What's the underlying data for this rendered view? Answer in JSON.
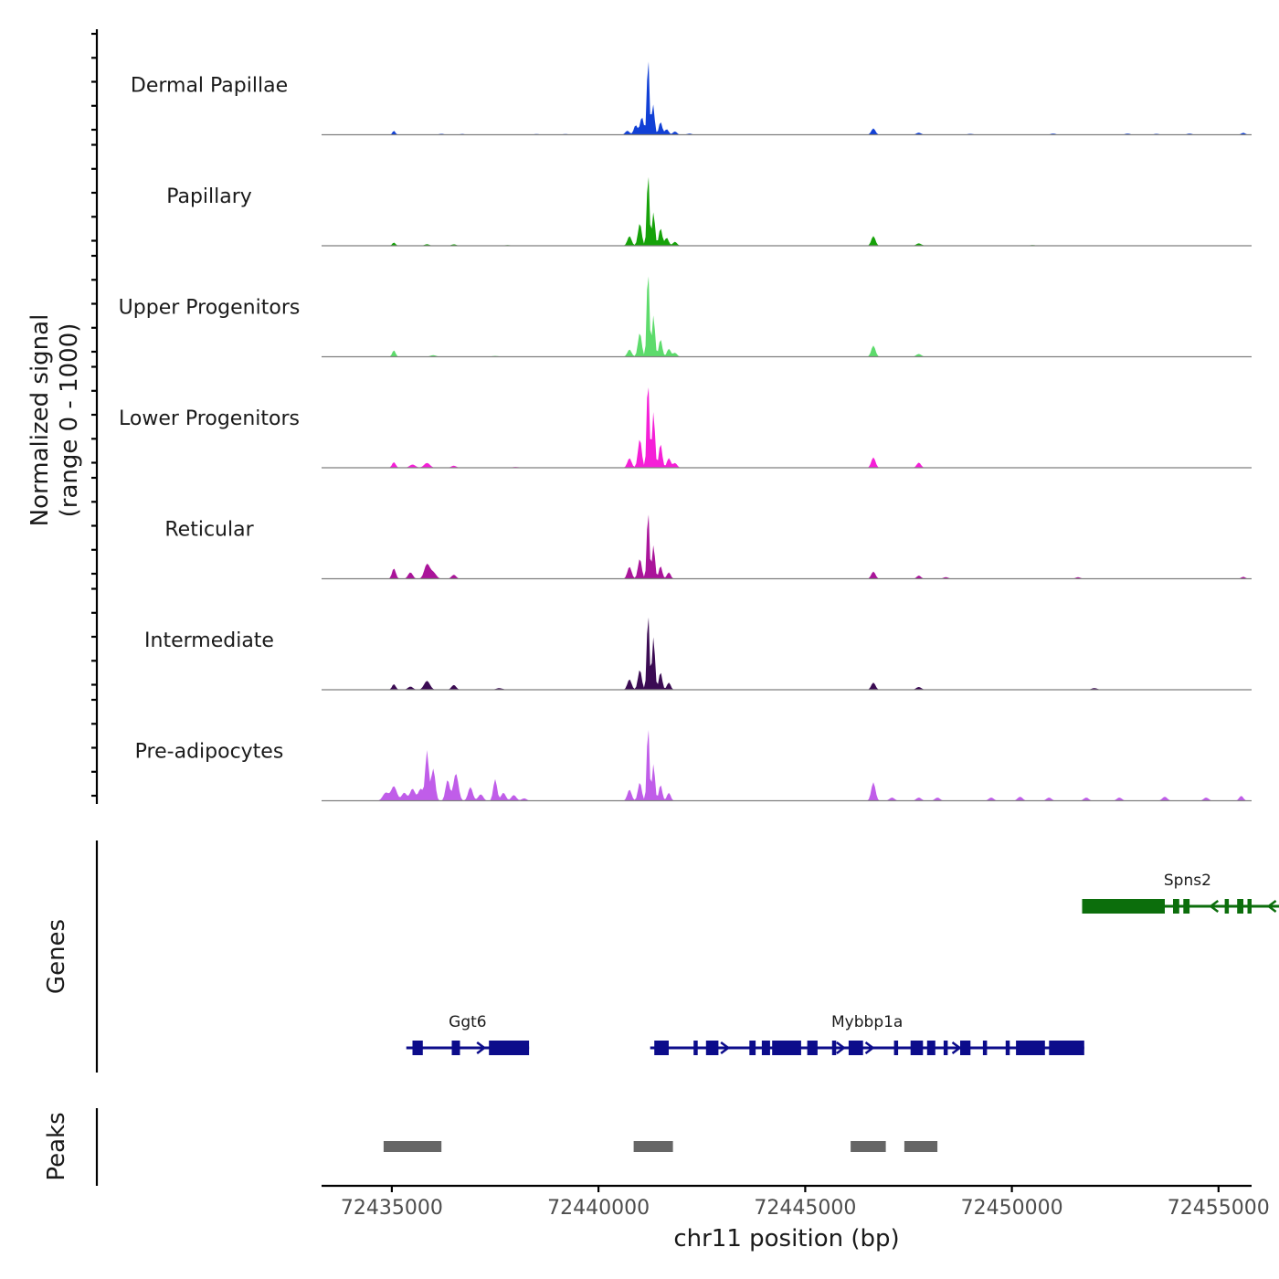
{
  "chart_data": {
    "type": "area",
    "title": "",
    "xlabel": "chr11 position (bp)",
    "ylabel": "Normalized signal",
    "ylabel_sub": "(range 0 - 1000)",
    "xlim": [
      72433300,
      72455800
    ],
    "ylim": [
      0,
      1000
    ],
    "x_ticks": [
      72435000,
      72440000,
      72445000,
      72450000,
      72455000
    ],
    "x_tick_labels": [
      "72435000",
      "72440000",
      "72445000",
      "72450000",
      "72455000"
    ],
    "tracks": [
      {
        "name": "Dermal Papillae",
        "color": "#1140d6",
        "peaks": [
          [
            72435050,
            50,
            35
          ],
          [
            72436200,
            12,
            60
          ],
          [
            72436700,
            10,
            60
          ],
          [
            72438500,
            8,
            80
          ],
          [
            72439200,
            8,
            80
          ],
          [
            72440700,
            50,
            50
          ],
          [
            72440900,
            120,
            45
          ],
          [
            72441050,
            220,
            45
          ],
          [
            72441200,
            1000,
            28
          ],
          [
            72441320,
            380,
            35
          ],
          [
            72441500,
            160,
            40
          ],
          [
            72441650,
            70,
            45
          ],
          [
            72441850,
            40,
            50
          ],
          [
            72442200,
            15,
            60
          ],
          [
            72446650,
            80,
            50
          ],
          [
            72447750,
            25,
            60
          ],
          [
            72449000,
            12,
            70
          ],
          [
            72451000,
            15,
            60
          ],
          [
            72452800,
            15,
            60
          ],
          [
            72453500,
            12,
            60
          ],
          [
            72454300,
            15,
            60
          ],
          [
            72455600,
            25,
            50
          ]
        ]
      },
      {
        "name": "Papillary",
        "color": "#16a209",
        "peaks": [
          [
            72435050,
            40,
            40
          ],
          [
            72435850,
            20,
            60
          ],
          [
            72436500,
            18,
            60
          ],
          [
            72437800,
            8,
            80
          ],
          [
            72440750,
            120,
            50
          ],
          [
            72441000,
            280,
            45
          ],
          [
            72441200,
            930,
            30
          ],
          [
            72441330,
            420,
            35
          ],
          [
            72441500,
            220,
            40
          ],
          [
            72441650,
            100,
            45
          ],
          [
            72441850,
            50,
            50
          ],
          [
            72446650,
            120,
            50
          ],
          [
            72447750,
            30,
            60
          ],
          [
            72450500,
            8,
            80
          ]
        ]
      },
      {
        "name": "Upper Progenitors",
        "color": "#5ddb6c",
        "peaks": [
          [
            72435050,
            80,
            40
          ],
          [
            72436000,
            20,
            70
          ],
          [
            72437500,
            10,
            80
          ],
          [
            72440750,
            90,
            50
          ],
          [
            72441000,
            300,
            45
          ],
          [
            72441200,
            1180,
            30
          ],
          [
            72441330,
            520,
            35
          ],
          [
            72441500,
            220,
            40
          ],
          [
            72441700,
            100,
            45
          ],
          [
            72441850,
            50,
            50
          ],
          [
            72446650,
            140,
            50
          ],
          [
            72447750,
            35,
            60
          ]
        ]
      },
      {
        "name": "Lower Progenitors",
        "color": "#f51fd7",
        "peaks": [
          [
            72435050,
            70,
            45
          ],
          [
            72435500,
            40,
            70
          ],
          [
            72435850,
            60,
            70
          ],
          [
            72436500,
            25,
            60
          ],
          [
            72438000,
            10,
            80
          ],
          [
            72440750,
            120,
            50
          ],
          [
            72441000,
            360,
            45
          ],
          [
            72441200,
            1230,
            30
          ],
          [
            72441330,
            700,
            35
          ],
          [
            72441500,
            300,
            40
          ],
          [
            72441700,
            120,
            45
          ],
          [
            72441850,
            60,
            50
          ],
          [
            72446650,
            130,
            50
          ],
          [
            72447750,
            65,
            50
          ]
        ]
      },
      {
        "name": "Reticular",
        "color": "#aa149a",
        "peaks": [
          [
            72435050,
            130,
            45
          ],
          [
            72435450,
            80,
            55
          ],
          [
            72435850,
            180,
            65
          ],
          [
            72436000,
            80,
            70
          ],
          [
            72436500,
            50,
            55
          ],
          [
            72440750,
            150,
            50
          ],
          [
            72441000,
            250,
            45
          ],
          [
            72441200,
            870,
            30
          ],
          [
            72441330,
            420,
            35
          ],
          [
            72441500,
            160,
            40
          ],
          [
            72441700,
            80,
            45
          ],
          [
            72446650,
            90,
            50
          ],
          [
            72447750,
            40,
            50
          ],
          [
            72448400,
            20,
            60
          ],
          [
            72451600,
            20,
            60
          ],
          [
            72455600,
            25,
            50
          ]
        ]
      },
      {
        "name": "Intermediate",
        "color": "#3b0b53",
        "peaks": [
          [
            72435050,
            70,
            45
          ],
          [
            72435450,
            40,
            60
          ],
          [
            72435850,
            110,
            70
          ],
          [
            72436500,
            60,
            55
          ],
          [
            72437600,
            20,
            80
          ],
          [
            72440750,
            130,
            50
          ],
          [
            72441000,
            250,
            45
          ],
          [
            72441200,
            980,
            30
          ],
          [
            72441330,
            660,
            35
          ],
          [
            72441500,
            220,
            40
          ],
          [
            72441700,
            90,
            45
          ],
          [
            72446650,
            90,
            50
          ],
          [
            72447750,
            35,
            60
          ],
          [
            72452000,
            20,
            70
          ]
        ]
      },
      {
        "name": "Pre-adipocytes",
        "color": "#c05de9",
        "peaks": [
          [
            72434850,
            100,
            70
          ],
          [
            72435050,
            180,
            70
          ],
          [
            72435300,
            100,
            60
          ],
          [
            72435500,
            150,
            60
          ],
          [
            72435700,
            150,
            60
          ],
          [
            72435850,
            620,
            40
          ],
          [
            72436000,
            400,
            50
          ],
          [
            72436350,
            260,
            50
          ],
          [
            72436550,
            340,
            60
          ],
          [
            72436900,
            170,
            55
          ],
          [
            72437150,
            80,
            60
          ],
          [
            72437500,
            270,
            45
          ],
          [
            72437700,
            100,
            55
          ],
          [
            72437950,
            70,
            60
          ],
          [
            72438200,
            30,
            60
          ],
          [
            72440750,
            140,
            50
          ],
          [
            72441000,
            230,
            45
          ],
          [
            72441200,
            960,
            30
          ],
          [
            72441330,
            460,
            35
          ],
          [
            72441500,
            200,
            40
          ],
          [
            72441700,
            100,
            45
          ],
          [
            72446650,
            230,
            50
          ],
          [
            72447100,
            40,
            60
          ],
          [
            72447750,
            40,
            60
          ],
          [
            72448200,
            40,
            60
          ],
          [
            72449500,
            40,
            60
          ],
          [
            72450200,
            50,
            60
          ],
          [
            72450900,
            40,
            60
          ],
          [
            72451800,
            40,
            60
          ],
          [
            72452600,
            40,
            60
          ],
          [
            72453700,
            50,
            60
          ],
          [
            72454700,
            40,
            60
          ],
          [
            72455550,
            60,
            50
          ]
        ]
      }
    ],
    "genes": [
      {
        "name": "Spns2",
        "color": "#0c6e0c",
        "strand": "-",
        "start": 72451700,
        "end": 72456800,
        "exons": [
          [
            72451700,
            72453700
          ],
          [
            72453900,
            72454050
          ],
          [
            72454150,
            72454300
          ],
          [
            72455150,
            72455250
          ],
          [
            72455450,
            72455600
          ],
          [
            72455700,
            72455800
          ]
        ]
      },
      {
        "name": "Ggt6",
        "color": "#0c0c8b",
        "strand": "+",
        "start": 72435350,
        "end": 72438320,
        "exons": [
          [
            72435500,
            72435750
          ],
          [
            72436450,
            72436650
          ],
          [
            72437350,
            72438320
          ]
        ]
      },
      {
        "name": "Mybbp1a",
        "color": "#0c0c8b",
        "strand": "+",
        "start": 72441250,
        "end": 72451750,
        "exons": [
          [
            72441350,
            72441700
          ],
          [
            72442300,
            72442400
          ],
          [
            72442600,
            72442900
          ],
          [
            72443650,
            72443800
          ],
          [
            72443950,
            72444150
          ],
          [
            72444200,
            72444900
          ],
          [
            72445050,
            72445300
          ],
          [
            72445650,
            72445750
          ],
          [
            72446050,
            72446400
          ],
          [
            72447150,
            72447250
          ],
          [
            72447550,
            72447850
          ],
          [
            72447950,
            72448150
          ],
          [
            72448350,
            72448450
          ],
          [
            72448750,
            72449000
          ],
          [
            72449300,
            72449400
          ],
          [
            72449850,
            72449950
          ],
          [
            72450100,
            72450800
          ],
          [
            72450900,
            72451750
          ]
        ]
      }
    ],
    "peaks_track": [
      [
        72434800,
        72436200
      ],
      [
        72440850,
        72441800
      ],
      [
        72446100,
        72446950
      ],
      [
        72447400,
        72448200
      ]
    ]
  }
}
